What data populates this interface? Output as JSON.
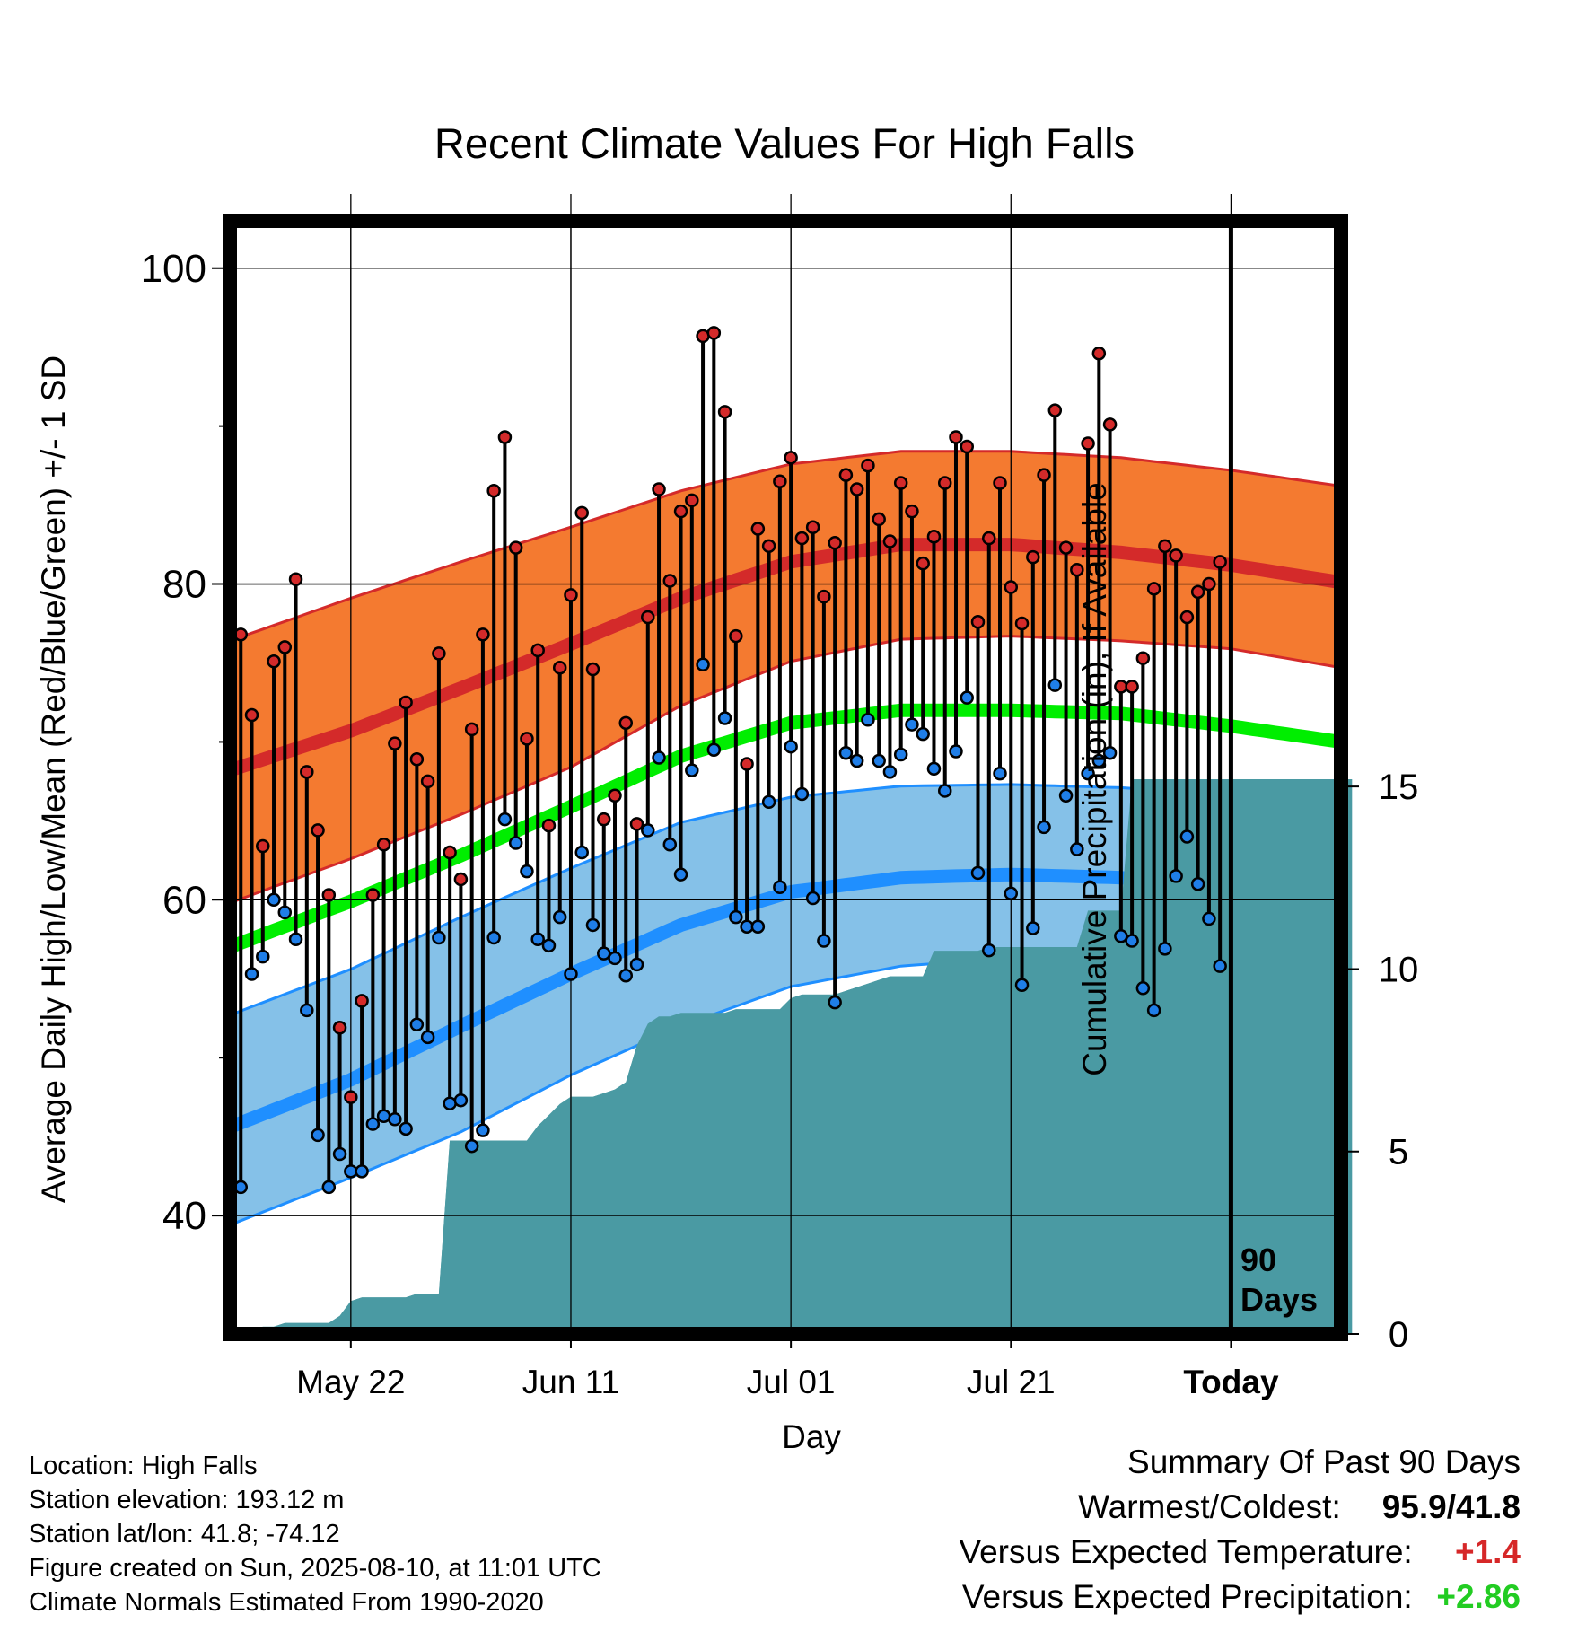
{
  "title": "Recent Climate Values For High Falls",
  "ylabel_left": "Average Daily High/Low/Mean (Red/Blue/Green) +/- 1 SD",
  "ylabel_right": "Cumulative Precipitation (in), If Available",
  "xlabel": "Day",
  "today_marker": {
    "line1": "90",
    "line2": "Days"
  },
  "info": {
    "location": "Location: High Falls",
    "elevation": "Station elevation: 193.12 m",
    "latlon": "Station lat/lon: 41.8; -74.12",
    "created": "Figure created on Sun, 2025-08-10, at 11:01 UTC",
    "normals": "Climate Normals Estimated From 1990-2020"
  },
  "summary": {
    "title": "Summary Of Past 90 Days",
    "warmest_label": "Warmest/Coldest:",
    "warmest_value": "95.9/41.8",
    "temp_label": "Versus Expected Temperature:",
    "temp_value": "+1.4",
    "temp_color": "#d62728",
    "precip_label": "Versus Expected Precipitation:",
    "precip_value": "+2.86",
    "precip_color": "#22cc22"
  },
  "chart_data": {
    "type": "line",
    "x_axis": {
      "unit": "days before today",
      "range": [
        -91,
        10
      ],
      "ticks": [
        {
          "x": -80,
          "label": "May 22"
        },
        {
          "x": -60,
          "label": "Jun 11"
        },
        {
          "x": -40,
          "label": "Jul 01"
        },
        {
          "x": -20,
          "label": "Jul 21"
        },
        {
          "x": 0,
          "label": "Today"
        }
      ]
    },
    "y_left": {
      "range": [
        32.5,
        103
      ],
      "ticks": [
        40,
        60,
        80,
        100
      ],
      "minor_ticks": [
        50,
        70,
        90
      ]
    },
    "y_right": {
      "range": [
        0,
        30.5
      ],
      "ticks": [
        0,
        5,
        10,
        15
      ]
    },
    "colors": {
      "high_band": "#f47a30",
      "high_mean": "#d42a2a",
      "low_band": "#85c1e8",
      "low_mean": "#1f8fff",
      "mean": "#00ee00",
      "precip": "#4a9aa3",
      "high_dot": "#d42a2a",
      "low_dot": "#1f7ee8"
    },
    "normals": {
      "x": [
        -91,
        -80,
        -70,
        -60,
        -50,
        -40,
        -30,
        -20,
        -10,
        0,
        10
      ],
      "high_mean": [
        68.2,
        70.7,
        73.4,
        76.2,
        79.1,
        81.4,
        82.5,
        82.5,
        82.0,
        81.2,
        80.1
      ],
      "high_upper": [
        76.4,
        79.1,
        81.4,
        83.6,
        85.9,
        87.6,
        88.4,
        88.4,
        88.0,
        87.2,
        86.2
      ],
      "high_lower": [
        59.8,
        62.6,
        65.4,
        68.4,
        72.3,
        75.1,
        76.5,
        76.7,
        76.4,
        75.9,
        74.7
      ],
      "mean": [
        57.0,
        59.9,
        62.8,
        65.9,
        69.1,
        71.2,
        72.0,
        72.0,
        71.8,
        71.0,
        70.0
      ],
      "low_upper": [
        52.7,
        55.6,
        58.9,
        62.0,
        64.9,
        66.5,
        67.2,
        67.3,
        67.1,
        66.6,
        65.6
      ],
      "low_mean": [
        45.6,
        48.6,
        52.0,
        55.3,
        58.4,
        60.5,
        61.4,
        61.6,
        61.4,
        60.7,
        59.7
      ],
      "low_lower": [
        39.4,
        42.4,
        45.3,
        48.9,
        52.0,
        54.5,
        55.8,
        56.3,
        56.0,
        55.5,
        54.2
      ]
    },
    "daily": {
      "x_start": -90,
      "high": [
        76.8,
        71.7,
        63.4,
        75.1,
        76.0,
        80.3,
        68.1,
        64.4,
        60.3,
        51.9,
        47.5,
        53.6,
        60.3,
        63.5,
        69.9,
        72.5,
        68.9,
        67.5,
        75.6,
        63.0,
        61.3,
        70.8,
        76.8,
        85.9,
        89.3,
        82.3,
        70.2,
        75.8,
        64.7,
        74.7,
        79.3,
        84.5,
        74.6,
        65.1,
        66.6,
        71.2,
        64.8,
        77.9,
        86.0,
        80.2,
        84.6,
        85.3,
        95.7,
        95.9,
        90.9,
        76.7,
        68.6,
        83.5,
        82.4,
        86.5,
        88.0,
        82.9,
        83.6,
        79.2,
        82.6,
        86.9,
        86.0,
        87.5,
        84.1,
        82.7,
        86.4,
        84.6,
        81.3,
        83.0,
        86.4,
        89.3,
        88.7,
        77.6,
        82.9,
        86.4,
        79.8,
        77.5,
        81.7,
        86.9,
        91.0,
        82.3,
        80.9,
        88.9,
        94.6,
        90.1,
        73.5,
        73.5,
        75.3,
        79.7,
        82.4,
        81.8,
        77.9,
        79.5,
        80.0,
        81.4
      ],
      "low": [
        41.8,
        55.3,
        56.4,
        60.0,
        59.2,
        57.5,
        53.0,
        45.1,
        41.8,
        43.9,
        42.8,
        42.8,
        45.8,
        46.3,
        46.1,
        45.5,
        52.1,
        51.3,
        57.6,
        47.1,
        47.3,
        44.4,
        45.4,
        57.6,
        65.1,
        63.6,
        61.8,
        57.5,
        57.1,
        58.9,
        55.3,
        63.0,
        58.4,
        56.6,
        56.3,
        55.2,
        55.9,
        64.4,
        69.0,
        63.5,
        61.6,
        68.2,
        74.9,
        69.5,
        71.5,
        58.9,
        58.3,
        58.3,
        66.2,
        60.8,
        69.7,
        66.7,
        60.1,
        57.4,
        53.5,
        69.3,
        68.8,
        71.4,
        68.8,
        68.1,
        69.2,
        71.1,
        70.5,
        68.3,
        66.9,
        69.4,
        72.8,
        61.7,
        56.8,
        68.0,
        60.4,
        54.6,
        58.2,
        64.6,
        73.6,
        66.6,
        63.2,
        68.0,
        68.8,
        69.3,
        57.7,
        57.4,
        54.4,
        53.0,
        56.9,
        61.5,
        64.0,
        61.0,
        58.8,
        55.8
      ]
    },
    "precip_cumulative": [
      0.0,
      0.1,
      0.2,
      0.2,
      0.3,
      0.3,
      0.3,
      0.3,
      0.3,
      0.5,
      0.9,
      1.0,
      1.0,
      1.0,
      1.0,
      1.0,
      1.1,
      1.1,
      1.1,
      5.3,
      5.3,
      5.3,
      5.3,
      5.3,
      5.3,
      5.3,
      5.3,
      5.7,
      6.0,
      6.3,
      6.5,
      6.5,
      6.5,
      6.6,
      6.7,
      6.9,
      7.9,
      8.5,
      8.7,
      8.7,
      8.8,
      8.8,
      8.8,
      8.8,
      8.8,
      8.9,
      8.9,
      8.9,
      8.9,
      8.9,
      9.2,
      9.3,
      9.3,
      9.3,
      9.3,
      9.4,
      9.5,
      9.6,
      9.7,
      9.8,
      9.8,
      9.8,
      9.8,
      10.5,
      10.5,
      10.5,
      10.5,
      10.5,
      10.6,
      10.6,
      10.6,
      10.6,
      10.6,
      10.6,
      10.6,
      10.6,
      10.6,
      11.6,
      11.6,
      11.6,
      11.6,
      15.2,
      15.2,
      15.2,
      15.2,
      15.2,
      15.2,
      15.2,
      15.2,
      15.2,
      15.2,
      15.2,
      15.2,
      15.2,
      15.2,
      15.2,
      15.2,
      15.2,
      15.2,
      15.2,
      15.2,
      15.2
    ]
  }
}
